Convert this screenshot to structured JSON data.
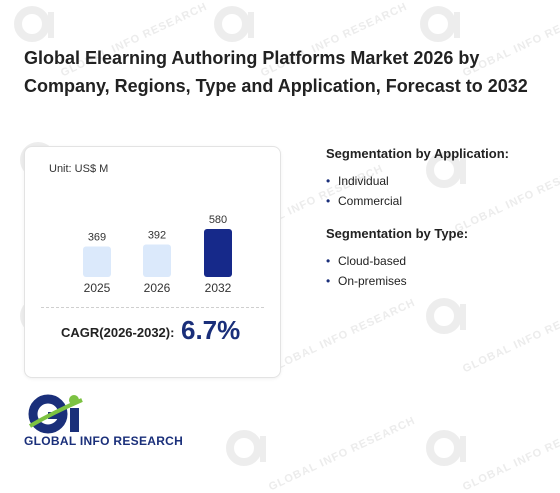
{
  "title": "Global Elearning Authoring Platforms Market 2026 by Company, Regions, Type and Application, Forecast to 2032",
  "watermark": "GLOBAL INFO RESEARCH",
  "chart_data": {
    "type": "bar",
    "unit_label": "Unit: US$ M",
    "categories": [
      "2025",
      "2026",
      "2032"
    ],
    "values": [
      369,
      392,
      580
    ],
    "bar_colors": [
      "#dbe9fb",
      "#dbe9fb",
      "#16298a"
    ],
    "title": "",
    "xlabel": "",
    "ylabel": ""
  },
  "cagr": {
    "label": "CAGR(2026-2032):",
    "value": "6.7%"
  },
  "segmentation": {
    "application": {
      "heading": "Segmentation by Application:",
      "items": [
        "Individual",
        "Commercial"
      ]
    },
    "type": {
      "heading": "Segmentation by Type:",
      "items": [
        "Cloud-based",
        "On-premises"
      ]
    }
  },
  "logo": {
    "text": "GLOBAL INFO RESEARCH",
    "colors": {
      "primary": "#1a2f7a",
      "accent": "#7cc242"
    }
  }
}
